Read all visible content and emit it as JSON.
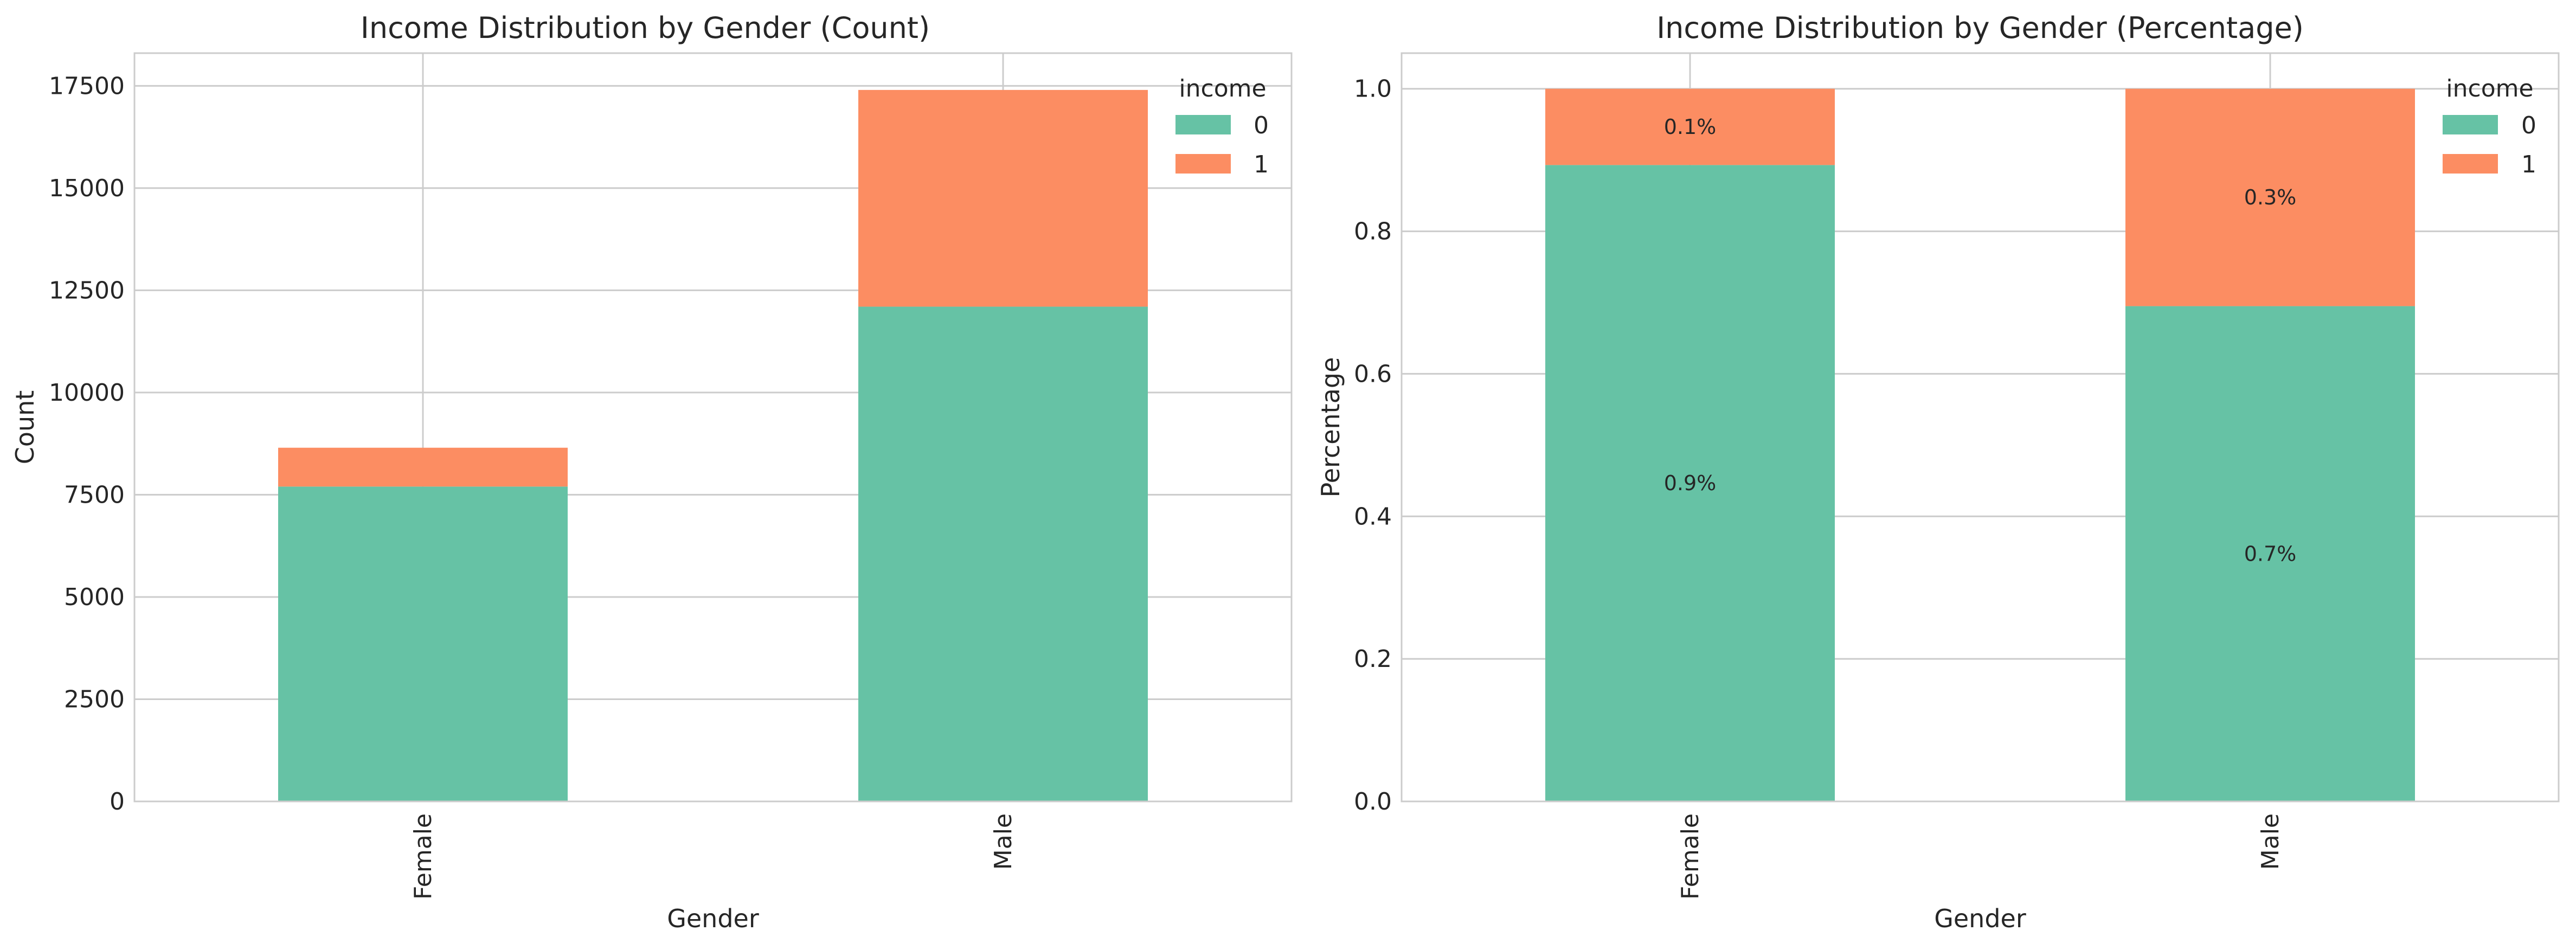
{
  "chart_data": [
    {
      "type": "bar",
      "stacked": true,
      "title": "Income Distribution by Gender (Count)",
      "xlabel": "Gender",
      "ylabel": "Count",
      "categories": [
        "Female",
        "Male"
      ],
      "series": [
        {
          "name": "0",
          "values": [
            7700,
            12100
          ],
          "color": "#66c2a5"
        },
        {
          "name": "1",
          "values": [
            950,
            5300
          ],
          "color": "#fc8d62"
        }
      ],
      "ylim": [
        0,
        18300
      ],
      "yticks": [
        0,
        2500,
        5000,
        7500,
        10000,
        12500,
        15000,
        17500
      ],
      "ytick_labels": [
        "0",
        "2500",
        "5000",
        "7500",
        "10000",
        "12500",
        "15000",
        "17500"
      ],
      "legend": {
        "title": "income",
        "location": "top-right",
        "labels": [
          "0",
          "1"
        ]
      },
      "grid": true
    },
    {
      "type": "bar",
      "stacked": true,
      "title": "Income Distribution by Gender (Percentage)",
      "xlabel": "Gender",
      "ylabel": "Percentage",
      "categories": [
        "Female",
        "Male"
      ],
      "series": [
        {
          "name": "0",
          "values": [
            0.893,
            0.695
          ],
          "color": "#66c2a5",
          "labels": [
            "0.9%",
            "0.7%"
          ]
        },
        {
          "name": "1",
          "values": [
            0.107,
            0.305
          ],
          "color": "#fc8d62",
          "labels": [
            "0.1%",
            "0.3%"
          ]
        }
      ],
      "ylim": [
        0,
        1.05
      ],
      "yticks": [
        0,
        0.2,
        0.4,
        0.6,
        0.8,
        1.0
      ],
      "ytick_labels": [
        "0.0",
        "0.2",
        "0.4",
        "0.6",
        "0.8",
        "1.0"
      ],
      "legend": {
        "title": "income",
        "location": "top-right",
        "labels": [
          "0",
          "1"
        ]
      },
      "grid": true
    }
  ]
}
